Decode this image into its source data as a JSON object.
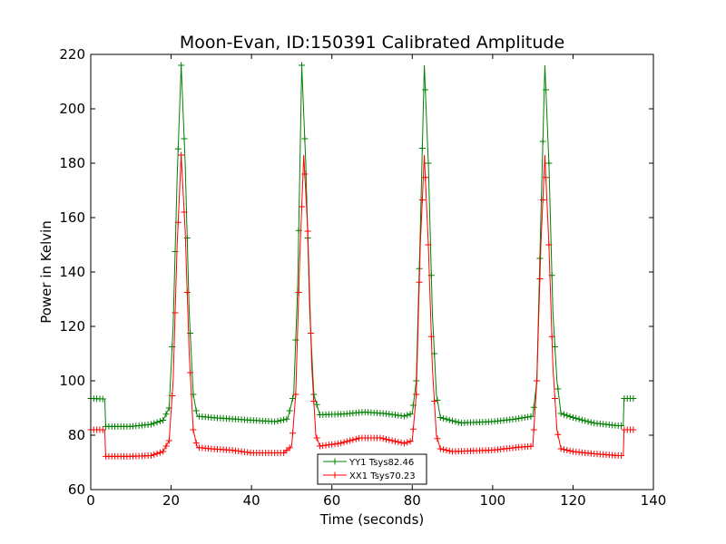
{
  "chart_data": {
    "type": "line",
    "title": "Moon-Evan, ID:150391 Calibrated Amplitude",
    "xlabel": "Time (seconds)",
    "ylabel": "Power in Kelvin",
    "xlim": [
      0,
      140
    ],
    "ylim": [
      60,
      220
    ],
    "xticks": [
      0,
      20,
      40,
      60,
      80,
      100,
      120,
      140
    ],
    "yticks": [
      60,
      80,
      100,
      120,
      140,
      160,
      180,
      200,
      220
    ],
    "grid": false,
    "legend_position": "lower-center",
    "marker": "+",
    "sample_interval": 0.75,
    "series": [
      {
        "name": "YY1 Tsys82.46",
        "color": "#008000",
        "points": [
          [
            0,
            93.5
          ],
          [
            3.5,
            93.3
          ],
          [
            3.7,
            83.2
          ],
          [
            10,
            83.2
          ],
          [
            15,
            84
          ],
          [
            18,
            85.5
          ],
          [
            19.5,
            90
          ],
          [
            20.5,
            120
          ],
          [
            21.5,
            175
          ],
          [
            22.5,
            216
          ],
          [
            23.5,
            180
          ],
          [
            24.5,
            125
          ],
          [
            25.5,
            95
          ],
          [
            26.5,
            87
          ],
          [
            30,
            86.5
          ],
          [
            40,
            85.5
          ],
          [
            46,
            85
          ],
          [
            49,
            86
          ],
          [
            50.5,
            95
          ],
          [
            51.5,
            135
          ],
          [
            52.5,
            216
          ],
          [
            53.5,
            180
          ],
          [
            54.5,
            125
          ],
          [
            55.5,
            95
          ],
          [
            57,
            87.5
          ],
          [
            63,
            87.8
          ],
          [
            68,
            88.5
          ],
          [
            73,
            88
          ],
          [
            78,
            87
          ],
          [
            80,
            88
          ],
          [
            81,
            100
          ],
          [
            82,
            155
          ],
          [
            83,
            216
          ],
          [
            84,
            180
          ],
          [
            85,
            125
          ],
          [
            86,
            95
          ],
          [
            87,
            86.5
          ],
          [
            92,
            84.5
          ],
          [
            100,
            85
          ],
          [
            106,
            86
          ],
          [
            110,
            87
          ],
          [
            111,
            100
          ],
          [
            112,
            160
          ],
          [
            113,
            216
          ],
          [
            114,
            180
          ],
          [
            115,
            125
          ],
          [
            116,
            100
          ],
          [
            117,
            88
          ],
          [
            120,
            86.5
          ],
          [
            125,
            84.5
          ],
          [
            131,
            83.5
          ],
          [
            132.5,
            83.5
          ],
          [
            132.7,
            93.5
          ],
          [
            135,
            93.5
          ]
        ]
      },
      {
        "name": "XX1 Tsys70.23",
        "color": "#ff0000",
        "points": [
          [
            0,
            82
          ],
          [
            3.5,
            82
          ],
          [
            3.7,
            72.2
          ],
          [
            10,
            72.2
          ],
          [
            15,
            72.5
          ],
          [
            18,
            74
          ],
          [
            19.5,
            78
          ],
          [
            20.5,
            100
          ],
          [
            21.5,
            150
          ],
          [
            22.5,
            183
          ],
          [
            23.5,
            155
          ],
          [
            24.5,
            110
          ],
          [
            25.5,
            82
          ],
          [
            26.5,
            75.5
          ],
          [
            30,
            75
          ],
          [
            35,
            74.5
          ],
          [
            40,
            73.5
          ],
          [
            48,
            73.5
          ],
          [
            50,
            76
          ],
          [
            51,
            95
          ],
          [
            52,
            145
          ],
          [
            53,
            183
          ],
          [
            54,
            155
          ],
          [
            55,
            105
          ],
          [
            56,
            80
          ],
          [
            57,
            76
          ],
          [
            62,
            77
          ],
          [
            67,
            79
          ],
          [
            72,
            79
          ],
          [
            78,
            77
          ],
          [
            80,
            78
          ],
          [
            81,
            95
          ],
          [
            82,
            150
          ],
          [
            83,
            183
          ],
          [
            84,
            150
          ],
          [
            85,
            105
          ],
          [
            86,
            80
          ],
          [
            87,
            75
          ],
          [
            90,
            74
          ],
          [
            100,
            74.5
          ],
          [
            106,
            75.5
          ],
          [
            110,
            76
          ],
          [
            111,
            100
          ],
          [
            112,
            150
          ],
          [
            113,
            183
          ],
          [
            114,
            150
          ],
          [
            115,
            105
          ],
          [
            116,
            82
          ],
          [
            117,
            75
          ],
          [
            120,
            74
          ],
          [
            125,
            73.2
          ],
          [
            131,
            72.5
          ],
          [
            132.5,
            72.5
          ],
          [
            132.7,
            82
          ],
          [
            135,
            82
          ]
        ]
      }
    ]
  }
}
